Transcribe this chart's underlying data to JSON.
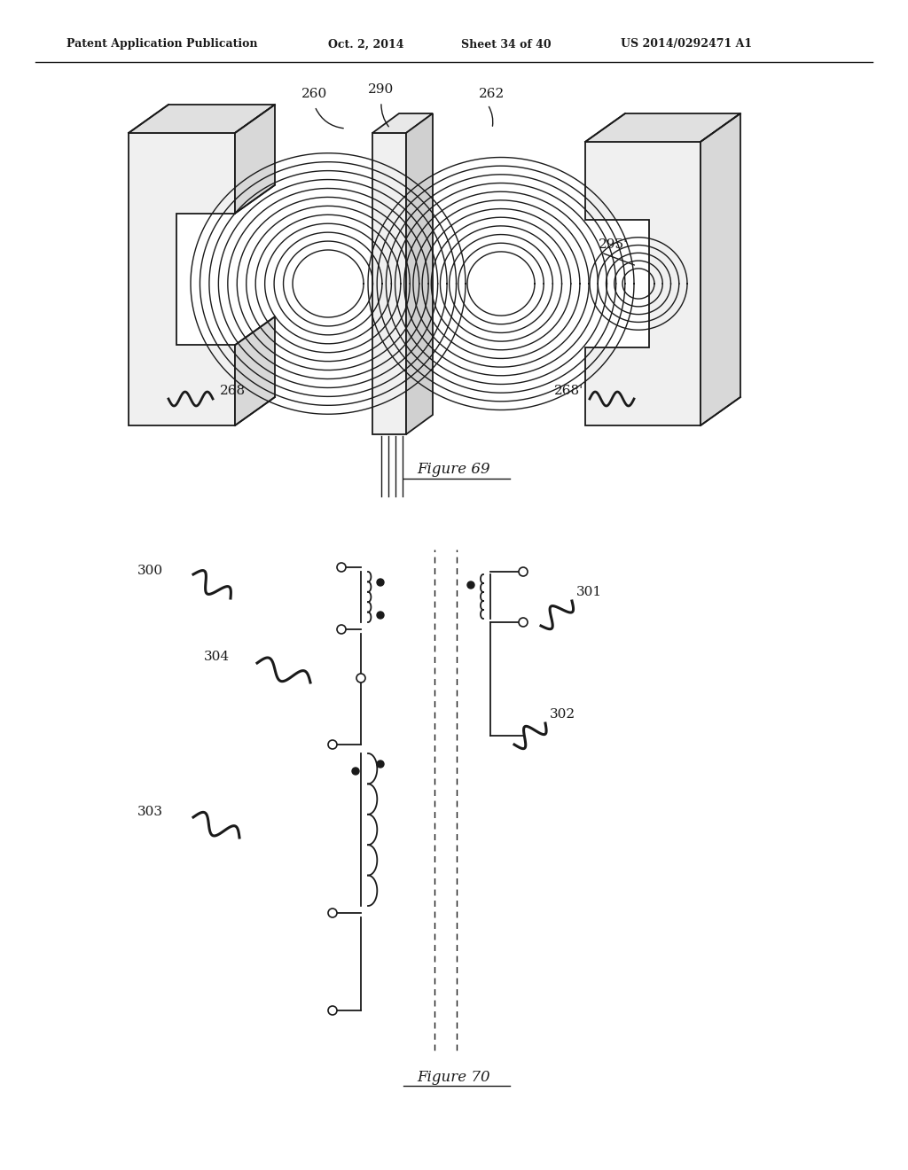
{
  "background_color": "#ffffff",
  "header_text": "Patent Application Publication",
  "header_date": "Oct. 2, 2014",
  "header_sheet": "Sheet 34 of 40",
  "header_patent": "US 2014/0292471 A1",
  "fig69_caption": "Figure 69",
  "fig70_caption": "Figure 70"
}
